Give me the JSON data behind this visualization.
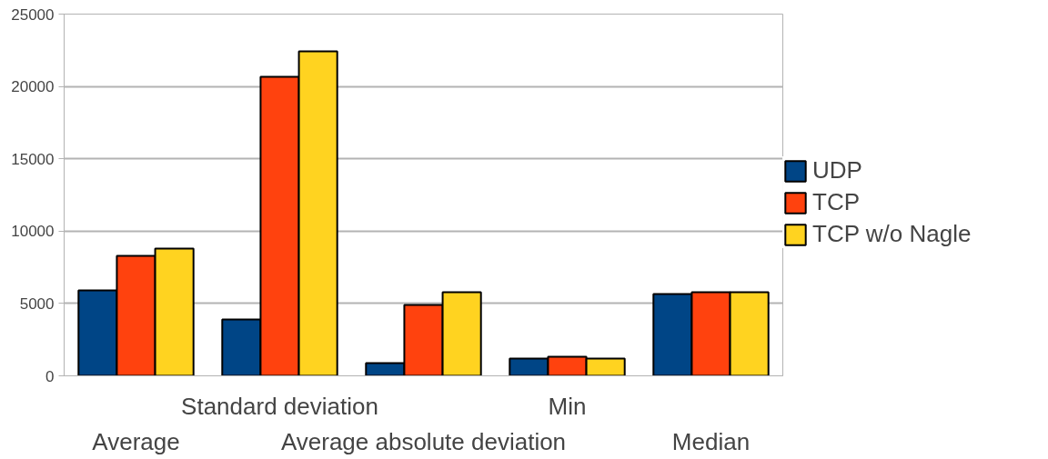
{
  "chart_data": {
    "type": "bar",
    "categories": [
      "Average",
      "Standard deviation",
      "Average absolute deviation",
      "Min",
      "Median"
    ],
    "series": [
      {
        "name": "UDP",
        "color": "#004586",
        "values": [
          5900,
          3900,
          880,
          1190,
          5650
        ]
      },
      {
        "name": "TCP",
        "color": "#ff420e",
        "values": [
          8290,
          20670,
          4900,
          1320,
          5780
        ]
      },
      {
        "name": "TCP w/o Nagle",
        "color": "#ffd320",
        "values": [
          8790,
          22420,
          5780,
          1190,
          5780
        ]
      }
    ],
    "ylim": [
      0,
      25000
    ],
    "yticks": [
      0,
      5000,
      10000,
      15000,
      20000,
      25000
    ],
    "grid": "y",
    "legend": "right"
  }
}
